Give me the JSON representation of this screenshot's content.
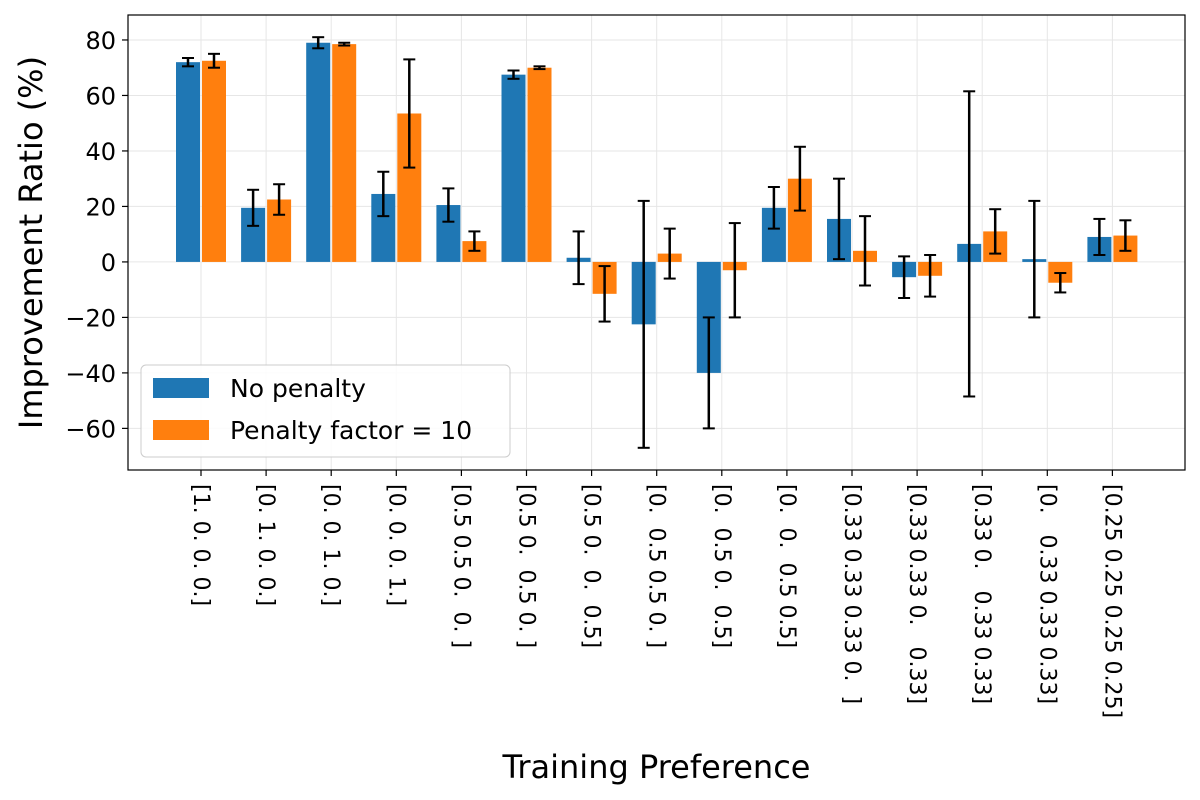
{
  "chart_data": {
    "type": "bar",
    "title": "",
    "xlabel": "Training Preference",
    "ylabel": "Improvement Ratio (%)",
    "ylim": [
      -75,
      89
    ],
    "yticks": [
      80,
      60,
      40,
      20,
      0,
      -20,
      -40,
      -60
    ],
    "ytick_labels": [
      "80",
      "60",
      "40",
      "20",
      "0",
      "−20",
      "−40",
      "−60"
    ],
    "grid": true,
    "legend_position": "lower-left",
    "categories": [
      "[1. 0. 0. 0.]",
      "[0. 1. 0. 0.]",
      "[0. 0. 1. 0.]",
      "[0. 0. 0. 1.]",
      "[0.5 0.5 0.  0. ]",
      "[0.5 0.  0.5 0. ]",
      "[0.5 0.  0.  0.5]",
      "[0.  0.5 0.5 0. ]",
      "[0.  0.5 0.  0.5]",
      "[0.  0.  0.5 0.5]",
      "[0.33 0.33 0.33 0.  ]",
      "[0.33 0.33 0.   0.33]",
      "[0.33 0.   0.33 0.33]",
      "[0.   0.33 0.33 0.33]",
      "[0.25 0.25 0.25 0.25]"
    ],
    "series": [
      {
        "name": "No penalty",
        "color": "#1f77b4",
        "values": [
          72,
          19.5,
          79,
          24.5,
          20.5,
          67.5,
          1.5,
          -22.5,
          -40,
          19.5,
          15.5,
          -5.5,
          6.5,
          1,
          9
        ],
        "errors": [
          1.5,
          6.5,
          2,
          8,
          6,
          1.5,
          9.5,
          44.5,
          20,
          7.5,
          14.5,
          7.5,
          55,
          21,
          6.5
        ]
      },
      {
        "name": "Penalty factor = 10",
        "color": "#ff7f0e",
        "values": [
          72.5,
          22.5,
          78.5,
          53.5,
          7.5,
          70,
          -11.5,
          3,
          -3,
          30,
          4,
          -5,
          11,
          -7.5,
          9.5
        ],
        "errors": [
          2.5,
          5.5,
          0.5,
          19.5,
          3.5,
          0.5,
          10,
          9,
          17,
          11.5,
          12.5,
          7.5,
          8,
          3.5,
          5.5
        ]
      }
    ]
  }
}
